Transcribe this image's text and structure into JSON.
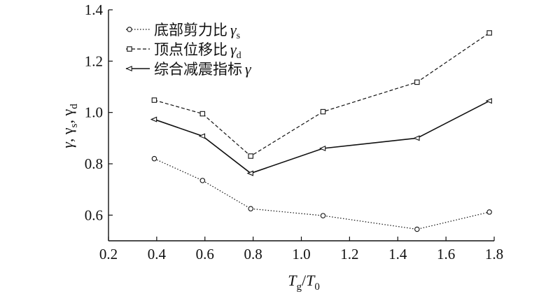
{
  "chart_data": {
    "type": "line",
    "xlabel": "Tg/T0",
    "ylabel": "γ, γs, γd",
    "xlim": [
      0.2,
      1.8
    ],
    "ylim": [
      0.5,
      1.4
    ],
    "x_ticks": [
      "0.2",
      "0.4",
      "0.6",
      "0.8",
      "1.0",
      "1.2",
      "1.4",
      "1.6",
      "1.8"
    ],
    "y_ticks": [
      "0.6",
      "0.8",
      "1.0",
      "1.2",
      "1.4"
    ],
    "legend_position": "top-left",
    "grid": false,
    "series": [
      {
        "name": "底部剪力比 γs",
        "label_text": "底部剪力比",
        "symbol": "γ",
        "subscript": "s",
        "marker": "circle",
        "line_style": "dotted",
        "x": [
          0.39,
          0.59,
          0.79,
          1.09,
          1.48,
          1.78
        ],
        "values": [
          0.82,
          0.735,
          0.625,
          0.598,
          0.545,
          0.612
        ]
      },
      {
        "name": "顶点位移比 γd",
        "label_text": "顶点位移比",
        "symbol": "γ",
        "subscript": "d",
        "marker": "square",
        "line_style": "dashed",
        "x": [
          0.39,
          0.59,
          0.79,
          1.09,
          1.48,
          1.78
        ],
        "values": [
          1.048,
          0.995,
          0.83,
          1.003,
          1.118,
          1.31
        ]
      },
      {
        "name": "综合减震指标 γ",
        "label_text": "综合减震指标",
        "symbol": "γ",
        "subscript": "",
        "marker": "triangle-left",
        "line_style": "solid",
        "x": [
          0.39,
          0.59,
          0.79,
          1.09,
          1.48,
          1.78
        ],
        "values": [
          0.973,
          0.908,
          0.763,
          0.86,
          0.9,
          1.045
        ]
      }
    ]
  }
}
